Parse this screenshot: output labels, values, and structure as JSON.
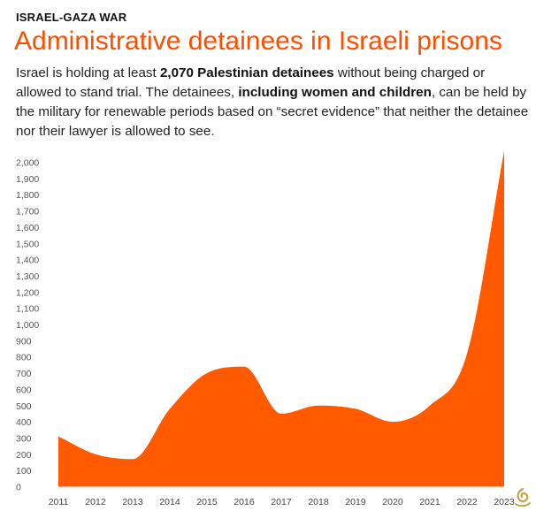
{
  "header": {
    "kicker": "ISRAEL-GAZA WAR",
    "title": "Administrative detainees in Israeli prisons",
    "desc_1": "Israel is holding at least ",
    "desc_2": "2,070 Palestinian detainees",
    "desc_3": " without being charged or allowed to stand trial. The detainees, ",
    "desc_4": "including women and children",
    "desc_5": ", can be held by the military for renewable periods based on “secret evidence” that neither the detainee nor their lawyer is allowed to see."
  },
  "colors": {
    "accent": "#fa4f00",
    "fill": "#ff5a00",
    "text": "#222222"
  },
  "logo": {
    "icon": "al-jazeera-logo-icon"
  },
  "chart_data": {
    "type": "area",
    "x": [
      "2011",
      "2012",
      "2013",
      "2014",
      "2015",
      "2016",
      "2017",
      "2018",
      "2019",
      "2020",
      "2021",
      "2022",
      "2023"
    ],
    "values": [
      310,
      200,
      170,
      480,
      700,
      740,
      450,
      500,
      480,
      400,
      500,
      820,
      2070
    ],
    "ylim": [
      0,
      2000
    ],
    "yticks": [
      "0",
      "100",
      "200",
      "300",
      "400",
      "500",
      "600",
      "700",
      "800",
      "900",
      "1,000",
      "1,100",
      "1,200",
      "1,300",
      "1,400",
      "1,500",
      "1,600",
      "1,700",
      "1,800",
      "1,900",
      "2,000"
    ],
    "grid": false,
    "xlabel": "",
    "ylabel": ""
  }
}
